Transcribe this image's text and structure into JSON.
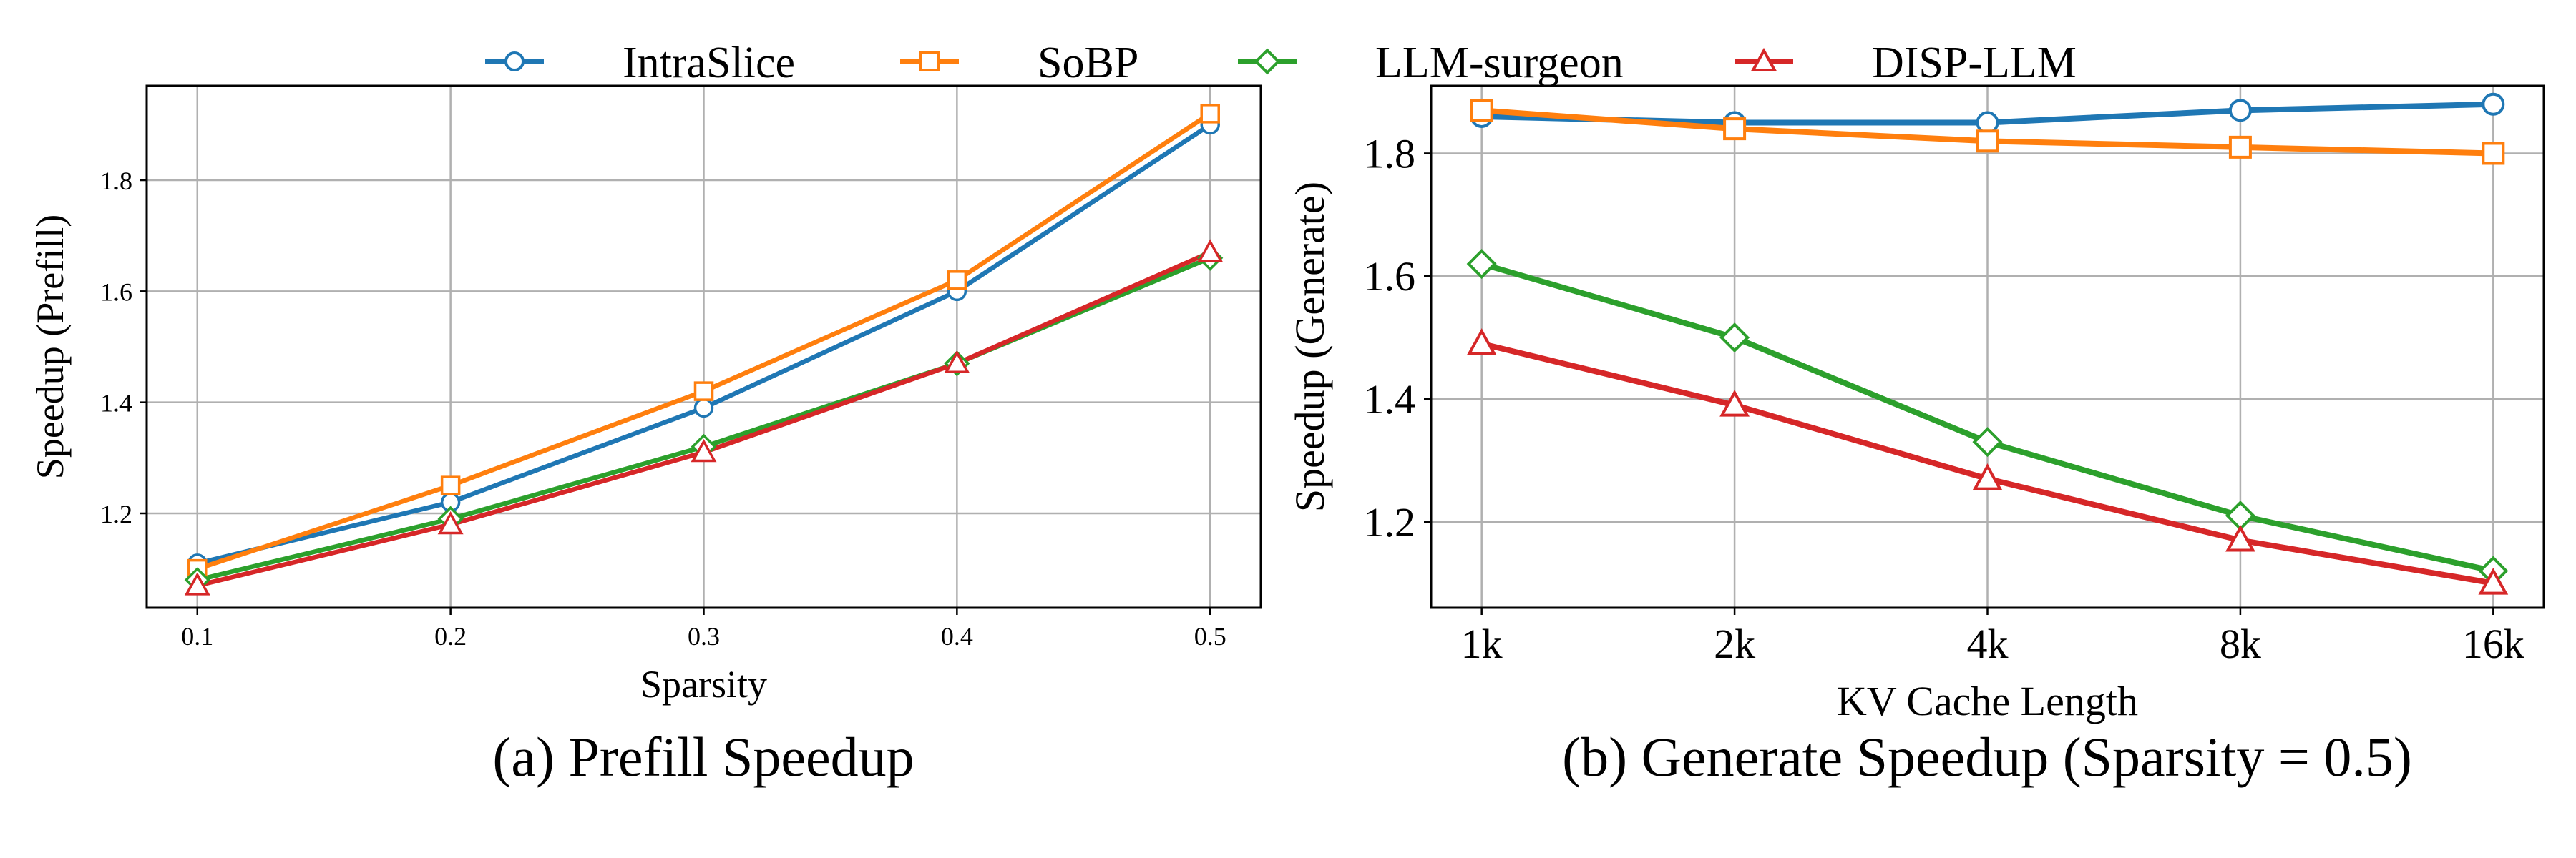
{
  "legend": [
    {
      "name": "IntraSlice",
      "color": "#1f77b4",
      "marker": "circle"
    },
    {
      "name": "SoBP",
      "color": "#ff7f0e",
      "marker": "square"
    },
    {
      "name": "LLM-surgeon",
      "color": "#2ca02c",
      "marker": "diamond"
    },
    {
      "name": "DISP-LLM",
      "color": "#d62728",
      "marker": "triangle"
    }
  ],
  "chart_data": [
    {
      "id": "a",
      "type": "line",
      "caption": "(a) Prefill Speedup",
      "xlabel": "Sparsity",
      "ylabel": "Speedup (Prefill)",
      "x": [
        0.1,
        0.2,
        0.3,
        0.4,
        0.5
      ],
      "xticklabels": [
        "0.1",
        "0.2",
        "0.3",
        "0.4",
        "0.5"
      ],
      "xlim": [
        0.08,
        0.52
      ],
      "ylim": [
        1.03,
        1.97
      ],
      "yticks": [
        1.2,
        1.4,
        1.6,
        1.8
      ],
      "yticklabels": [
        "1.2",
        "1.4",
        "1.6",
        "1.8"
      ],
      "grid": true,
      "series": [
        {
          "name": "IntraSlice",
          "values": [
            1.11,
            1.22,
            1.39,
            1.6,
            1.9
          ]
        },
        {
          "name": "SoBP",
          "values": [
            1.1,
            1.25,
            1.42,
            1.62,
            1.92
          ]
        },
        {
          "name": "LLM-surgeon",
          "values": [
            1.08,
            1.19,
            1.32,
            1.47,
            1.66
          ]
        },
        {
          "name": "DISP-LLM",
          "values": [
            1.07,
            1.18,
            1.31,
            1.47,
            1.67
          ]
        }
      ]
    },
    {
      "id": "b",
      "type": "line",
      "caption": "(b) Generate Speedup (Sparsity = 0.5)",
      "xlabel": "KV Cache Length",
      "ylabel": "Speedup (Generate)",
      "x": [
        0,
        1,
        2,
        3,
        4
      ],
      "xticklabels": [
        "1k",
        "2k",
        "4k",
        "8k",
        "16k"
      ],
      "xlim": [
        -0.2,
        4.2
      ],
      "ylim": [
        1.06,
        1.91
      ],
      "yticks": [
        1.2,
        1.4,
        1.6,
        1.8
      ],
      "yticklabels": [
        "1.2",
        "1.4",
        "1.6",
        "1.8"
      ],
      "grid": true,
      "series": [
        {
          "name": "IntraSlice",
          "values": [
            1.86,
            1.85,
            1.85,
            1.87,
            1.88
          ]
        },
        {
          "name": "SoBP",
          "values": [
            1.87,
            1.84,
            1.82,
            1.81,
            1.8
          ]
        },
        {
          "name": "LLM-surgeon",
          "values": [
            1.62,
            1.5,
            1.33,
            1.21,
            1.12
          ]
        },
        {
          "name": "DISP-LLM",
          "values": [
            1.49,
            1.39,
            1.27,
            1.17,
            1.1
          ]
        }
      ]
    }
  ]
}
